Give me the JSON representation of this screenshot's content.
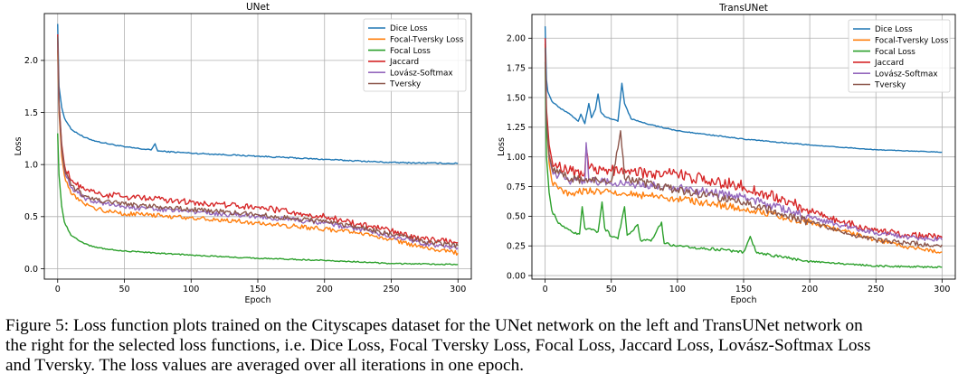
{
  "caption": {
    "line1": "Figure 5: Loss function plots trained on the Cityscapes dataset for the UNet network on the left and TransUNet network on",
    "line2": "the right for the selected loss functions, i.e. Dice Loss, Focal Tversky Loss, Focal Loss, Jaccard Loss, Lovász-Softmax Loss",
    "line3": "and Tversky. The loss values are averaged over all iterations in one epoch."
  },
  "chart_data": [
    {
      "type": "line",
      "title": "UNet",
      "xlabel": "Epoch",
      "ylabel": "Loss",
      "xlim": [
        -10,
        310
      ],
      "ylim": [
        -0.1,
        2.45
      ],
      "xticks": [
        0,
        50,
        100,
        150,
        200,
        250,
        300
      ],
      "yticks": [
        0.0,
        0.5,
        1.0,
        1.5,
        2.0
      ],
      "ytick_labels": [
        "0.0",
        "0.5",
        "1.0",
        "1.5",
        "2.0"
      ],
      "grid": true,
      "legend": "top-right",
      "series": [
        {
          "name": "Dice Loss",
          "color": "#1f77b4",
          "points": [
            [
              0,
              2.35
            ],
            [
              1,
              1.75
            ],
            [
              3,
              1.55
            ],
            [
              5,
              1.45
            ],
            [
              10,
              1.34
            ],
            [
              20,
              1.26
            ],
            [
              30,
              1.22
            ],
            [
              50,
              1.17
            ],
            [
              70,
              1.14
            ],
            [
              73,
              1.2
            ],
            [
              75,
              1.13
            ],
            [
              100,
              1.11
            ],
            [
              150,
              1.08
            ],
            [
              200,
              1.05
            ],
            [
              250,
              1.02
            ],
            [
              300,
              1.01
            ]
          ]
        },
        {
          "name": "Focal-Tversky Loss",
          "color": "#ff7f0e",
          "points": [
            [
              0,
              2.1
            ],
            [
              1,
              1.5
            ],
            [
              3,
              1.08
            ],
            [
              5,
              0.9
            ],
            [
              10,
              0.72
            ],
            [
              20,
              0.62
            ],
            [
              30,
              0.57
            ],
            [
              50,
              0.53
            ],
            [
              100,
              0.49
            ],
            [
              150,
              0.44
            ],
            [
              200,
              0.38
            ],
            [
              225,
              0.34
            ],
            [
              250,
              0.28
            ],
            [
              275,
              0.2
            ],
            [
              300,
              0.15
            ]
          ]
        },
        {
          "name": "Focal Loss",
          "color": "#2ca02c",
          "points": [
            [
              0,
              1.3
            ],
            [
              1,
              0.9
            ],
            [
              3,
              0.6
            ],
            [
              5,
              0.45
            ],
            [
              10,
              0.32
            ],
            [
              20,
              0.24
            ],
            [
              30,
              0.2
            ],
            [
              50,
              0.17
            ],
            [
              100,
              0.13
            ],
            [
              150,
              0.1
            ],
            [
              200,
              0.08
            ],
            [
              250,
              0.05
            ],
            [
              300,
              0.04
            ]
          ]
        },
        {
          "name": "Jaccard",
          "color": "#d62728",
          "points": [
            [
              0,
              2.25
            ],
            [
              1,
              1.6
            ],
            [
              3,
              1.2
            ],
            [
              5,
              1.0
            ],
            [
              10,
              0.85
            ],
            [
              20,
              0.76
            ],
            [
              30,
              0.72
            ],
            [
              50,
              0.69
            ],
            [
              100,
              0.64
            ],
            [
              150,
              0.59
            ],
            [
              200,
              0.5
            ],
            [
              225,
              0.43
            ],
            [
              250,
              0.36
            ],
            [
              275,
              0.28
            ],
            [
              300,
              0.25
            ]
          ]
        },
        {
          "name": "Lovász-Softmax",
          "color": "#9467bd",
          "points": [
            [
              0,
              2.2
            ],
            [
              1,
              1.55
            ],
            [
              3,
              1.15
            ],
            [
              5,
              0.95
            ],
            [
              10,
              0.78
            ],
            [
              20,
              0.68
            ],
            [
              30,
              0.64
            ],
            [
              50,
              0.59
            ],
            [
              100,
              0.55
            ],
            [
              150,
              0.5
            ],
            [
              200,
              0.44
            ],
            [
              225,
              0.38
            ],
            [
              250,
              0.31
            ],
            [
              275,
              0.24
            ],
            [
              300,
              0.2
            ]
          ]
        },
        {
          "name": "Tversky",
          "color": "#8c564b",
          "points": [
            [
              0,
              2.23
            ],
            [
              1,
              1.57
            ],
            [
              3,
              1.17
            ],
            [
              5,
              0.97
            ],
            [
              10,
              0.8
            ],
            [
              20,
              0.7
            ],
            [
              30,
              0.66
            ],
            [
              50,
              0.62
            ],
            [
              100,
              0.57
            ],
            [
              150,
              0.52
            ],
            [
              200,
              0.45
            ],
            [
              225,
              0.4
            ],
            [
              250,
              0.33
            ],
            [
              275,
              0.26
            ],
            [
              300,
              0.22
            ]
          ]
        }
      ]
    },
    {
      "type": "line",
      "title": "TransUNet",
      "xlabel": "Epoch",
      "ylabel": "Loss",
      "xlim": [
        -10,
        310
      ],
      "ylim": [
        -0.03,
        2.2
      ],
      "xticks": [
        0,
        50,
        100,
        150,
        200,
        250,
        300
      ],
      "yticks": [
        0.0,
        0.25,
        0.5,
        0.75,
        1.0,
        1.25,
        1.5,
        1.75,
        2.0
      ],
      "ytick_labels": [
        "0.00",
        "0.25",
        "0.50",
        "0.75",
        "1.00",
        "1.25",
        "1.50",
        "1.75",
        "2.00"
      ],
      "grid": true,
      "legend": "top-right",
      "series": [
        {
          "name": "Dice Loss",
          "color": "#1f77b4",
          "points": [
            [
              0,
              2.1
            ],
            [
              1,
              1.65
            ],
            [
              2,
              1.55
            ],
            [
              5,
              1.47
            ],
            [
              10,
              1.42
            ],
            [
              20,
              1.35
            ],
            [
              25,
              1.3
            ],
            [
              27,
              1.36
            ],
            [
              30,
              1.28
            ],
            [
              33,
              1.45
            ],
            [
              35,
              1.33
            ],
            [
              38,
              1.4
            ],
            [
              40,
              1.53
            ],
            [
              42,
              1.38
            ],
            [
              45,
              1.34
            ],
            [
              50,
              1.32
            ],
            [
              55,
              1.3
            ],
            [
              58,
              1.62
            ],
            [
              60,
              1.45
            ],
            [
              65,
              1.32
            ],
            [
              80,
              1.27
            ],
            [
              100,
              1.22
            ],
            [
              150,
              1.15
            ],
            [
              200,
              1.1
            ],
            [
              250,
              1.06
            ],
            [
              300,
              1.04
            ]
          ]
        },
        {
          "name": "Focal-Tversky Loss",
          "color": "#ff7f0e",
          "points": [
            [
              0,
              1.95
            ],
            [
              1,
              1.3
            ],
            [
              3,
              0.95
            ],
            [
              5,
              0.8
            ],
            [
              10,
              0.73
            ],
            [
              20,
              0.68
            ],
            [
              30,
              0.72
            ],
            [
              50,
              0.7
            ],
            [
              100,
              0.65
            ],
            [
              150,
              0.56
            ],
            [
              200,
              0.45
            ],
            [
              225,
              0.38
            ],
            [
              250,
              0.3
            ],
            [
              275,
              0.24
            ],
            [
              300,
              0.2
            ]
          ]
        },
        {
          "name": "Focal Loss",
          "color": "#2ca02c",
          "points": [
            [
              0,
              1.8
            ],
            [
              1,
              1.0
            ],
            [
              3,
              0.7
            ],
            [
              5,
              0.55
            ],
            [
              10,
              0.44
            ],
            [
              20,
              0.37
            ],
            [
              26,
              0.35
            ],
            [
              28,
              0.58
            ],
            [
              30,
              0.4
            ],
            [
              40,
              0.37
            ],
            [
              43,
              0.62
            ],
            [
              45,
              0.4
            ],
            [
              50,
              0.33
            ],
            [
              55,
              0.31
            ],
            [
              60,
              0.58
            ],
            [
              62,
              0.34
            ],
            [
              70,
              0.43
            ],
            [
              72,
              0.3
            ],
            [
              80,
              0.29
            ],
            [
              88,
              0.45
            ],
            [
              90,
              0.27
            ],
            [
              100,
              0.25
            ],
            [
              150,
              0.2
            ],
            [
              155,
              0.33
            ],
            [
              160,
              0.19
            ],
            [
              200,
              0.12
            ],
            [
              250,
              0.08
            ],
            [
              300,
              0.07
            ]
          ]
        },
        {
          "name": "Jaccard",
          "color": "#d62728",
          "points": [
            [
              0,
              2.0
            ],
            [
              1,
              1.4
            ],
            [
              3,
              1.1
            ],
            [
              5,
              0.98
            ],
            [
              10,
              0.92
            ],
            [
              20,
              0.88
            ],
            [
              30,
              0.87
            ],
            [
              31,
              1.08
            ],
            [
              33,
              0.9
            ],
            [
              50,
              0.88
            ],
            [
              100,
              0.85
            ],
            [
              150,
              0.75
            ],
            [
              200,
              0.55
            ],
            [
              225,
              0.45
            ],
            [
              250,
              0.38
            ],
            [
              275,
              0.34
            ],
            [
              300,
              0.32
            ]
          ]
        },
        {
          "name": "Lovász-Softmax",
          "color": "#9467bd",
          "points": [
            [
              0,
              1.9
            ],
            [
              1,
              1.3
            ],
            [
              3,
              1.0
            ],
            [
              5,
              0.9
            ],
            [
              10,
              0.84
            ],
            [
              20,
              0.8
            ],
            [
              30,
              0.78
            ],
            [
              31,
              1.12
            ],
            [
              33,
              0.8
            ],
            [
              50,
              0.78
            ],
            [
              100,
              0.74
            ],
            [
              150,
              0.66
            ],
            [
              200,
              0.49
            ],
            [
              225,
              0.42
            ],
            [
              250,
              0.36
            ],
            [
              275,
              0.32
            ],
            [
              300,
              0.3
            ]
          ]
        },
        {
          "name": "Tversky",
          "color": "#8c564b",
          "points": [
            [
              0,
              1.92
            ],
            [
              1,
              1.32
            ],
            [
              3,
              1.02
            ],
            [
              5,
              0.92
            ],
            [
              10,
              0.86
            ],
            [
              20,
              0.82
            ],
            [
              30,
              0.8
            ],
            [
              50,
              0.79
            ],
            [
              57,
              1.22
            ],
            [
              60,
              0.82
            ],
            [
              100,
              0.72
            ],
            [
              150,
              0.62
            ],
            [
              200,
              0.45
            ],
            [
              225,
              0.36
            ],
            [
              250,
              0.3
            ],
            [
              275,
              0.27
            ],
            [
              300,
              0.26
            ]
          ]
        }
      ]
    }
  ]
}
